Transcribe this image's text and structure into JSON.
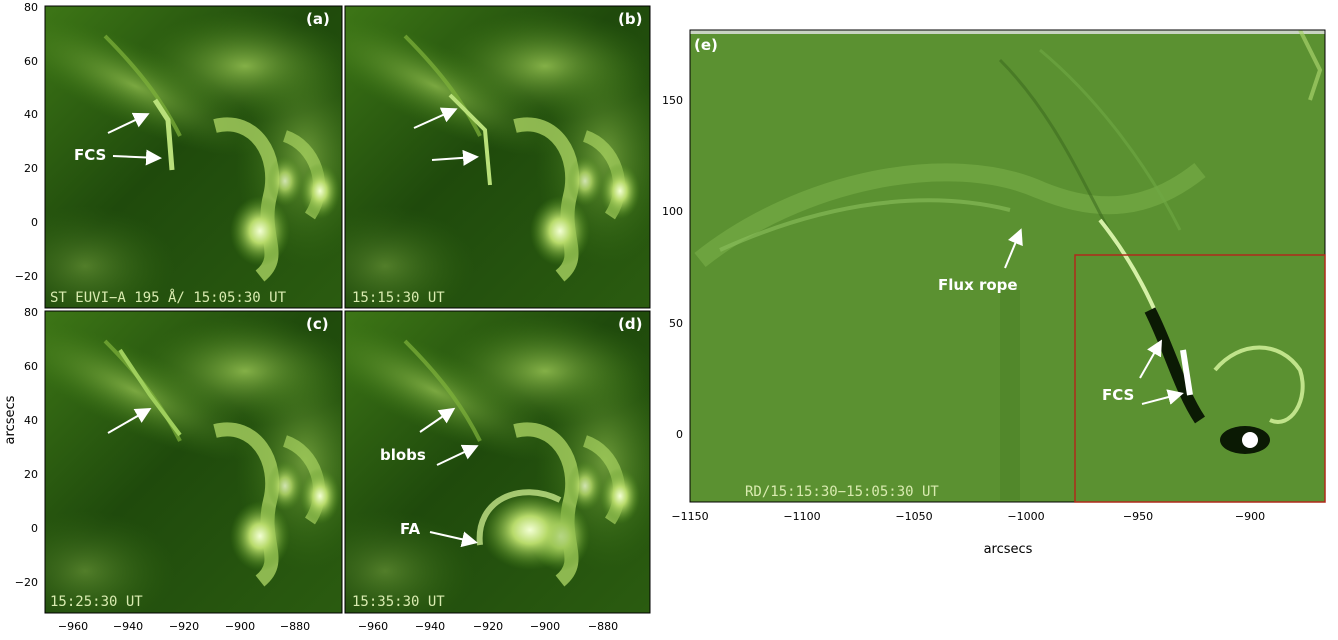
{
  "figure": {
    "ylabel_left": "arcsecs",
    "xlabel_right": "arcsecs",
    "left_panels": {
      "x_ticks": [
        "−960",
        "−940",
        "−920",
        "−900",
        "−880"
      ],
      "y_ticks": [
        "80",
        "60",
        "40",
        "20",
        "0",
        "−20"
      ],
      "items": [
        {
          "label": "(a)",
          "timestamp": "ST EUVI−A 195 Å/ 15:05:30   UT",
          "annotations": [
            "FCS"
          ]
        },
        {
          "label": "(b)",
          "timestamp": "15:15:30   UT",
          "annotations": []
        },
        {
          "label": "(c)",
          "timestamp": "15:25:30   UT",
          "annotations": []
        },
        {
          "label": "(d)",
          "timestamp": "15:35:30   UT",
          "annotations": [
            "blobs",
            "FA"
          ]
        }
      ]
    },
    "right_panel": {
      "label": "(e)",
      "timestamp": "RD/15:15:30−15:05:30   UT",
      "x_ticks": [
        "−1150",
        "−1100",
        "−1050",
        "−1000",
        "−950",
        "−900"
      ],
      "y_ticks": [
        "150",
        "100",
        "50",
        "0"
      ],
      "annotations": [
        "Flux rope",
        "FCS"
      ]
    },
    "colors": {
      "euv_dark": "#1f4a0c",
      "euv_mid": "#4f8a1e",
      "euv_bright": "#e7f7b8",
      "diff_background": "#5b9131",
      "box_outline": "#b02a1a"
    }
  }
}
